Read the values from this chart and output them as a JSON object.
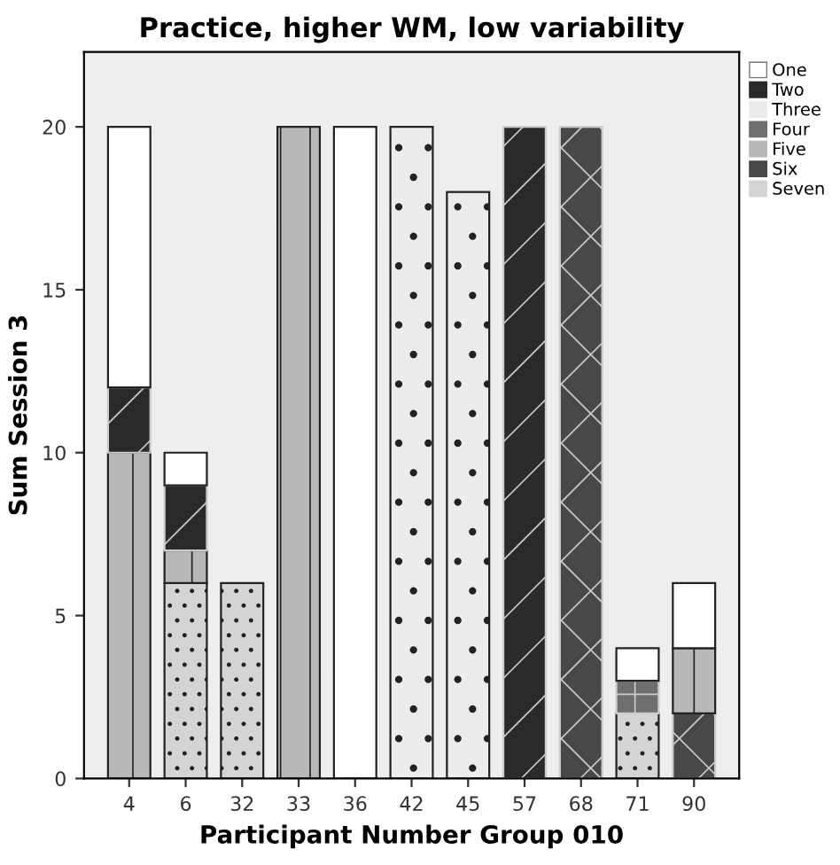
{
  "chart_data": {
    "type": "bar",
    "title": "Practice, higher WM, low variability",
    "xlabel": "Participant Number Group 010",
    "ylabel": "Sum Session 3",
    "categories": [
      "4",
      "6",
      "32",
      "33",
      "36",
      "42",
      "45",
      "57",
      "68",
      "71",
      "90"
    ],
    "stacked": true,
    "ylim": [
      0,
      22.3
    ],
    "yticks": [
      0,
      5,
      10,
      15,
      20
    ],
    "grid": false,
    "legend": "top right",
    "series": [
      {
        "name": "Seven",
        "color": "#d4d4d4",
        "values": [
          null,
          6,
          6,
          null,
          null,
          null,
          null,
          null,
          null,
          2,
          null
        ]
      },
      {
        "name": "Six",
        "color": "#484848",
        "values": [
          null,
          null,
          null,
          null,
          null,
          null,
          null,
          null,
          20,
          null,
          2
        ]
      },
      {
        "name": "Five",
        "color": "#b8b8b8",
        "values": [
          10,
          1,
          null,
          20,
          null,
          null,
          null,
          null,
          null,
          null,
          2
        ]
      },
      {
        "name": "Four",
        "color": "#6e6e6e",
        "values": [
          null,
          null,
          null,
          null,
          null,
          null,
          null,
          null,
          null,
          1,
          null
        ]
      },
      {
        "name": "Three",
        "color": "#ececec",
        "values": [
          null,
          null,
          null,
          null,
          null,
          20,
          18,
          null,
          null,
          null,
          null
        ]
      },
      {
        "name": "Two",
        "color": "#2a2a2a",
        "values": [
          2,
          2,
          null,
          null,
          null,
          null,
          null,
          20,
          null,
          null,
          null
        ]
      },
      {
        "name": "One",
        "color": "#ffffff",
        "values": [
          8,
          1,
          null,
          null,
          20,
          null,
          null,
          null,
          null,
          1,
          2
        ]
      }
    ]
  }
}
